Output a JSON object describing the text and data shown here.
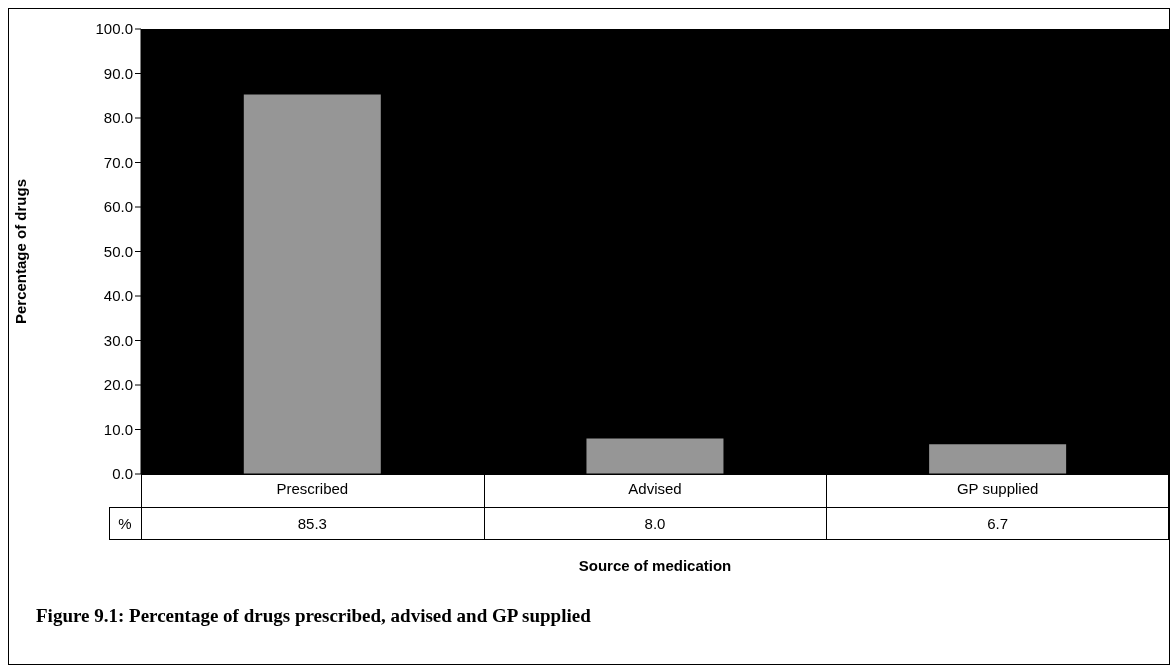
{
  "chart_data": {
    "type": "bar",
    "categories": [
      "Prescribed",
      "Advised",
      "GP supplied"
    ],
    "series": [
      {
        "name": "%",
        "color": "#969696",
        "values": [
          85.3,
          8.0,
          6.7
        ]
      }
    ],
    "value_labels": [
      "85.3",
      "8.0",
      "6.7"
    ],
    "ylim": [
      0,
      100
    ],
    "yticks": [
      {
        "value": 0,
        "label": "0.0"
      },
      {
        "value": 10,
        "label": "10.0"
      },
      {
        "value": 20,
        "label": "20.0"
      },
      {
        "value": 30,
        "label": "30.0"
      },
      {
        "value": 40,
        "label": "40.0"
      },
      {
        "value": 50,
        "label": "50.0"
      },
      {
        "value": 60,
        "label": "60.0"
      },
      {
        "value": 70,
        "label": "70.0"
      },
      {
        "value": 80,
        "label": "80.0"
      },
      {
        "value": 90,
        "label": "90.0"
      },
      {
        "value": 100,
        "label": "100.0"
      }
    ],
    "xlabel": "Source of medication",
    "ylabel": "Percentage of drugs",
    "annotations": [
      "Figure 9.1: Percentage of drugs prescribed, advised and GP supplied"
    ]
  }
}
